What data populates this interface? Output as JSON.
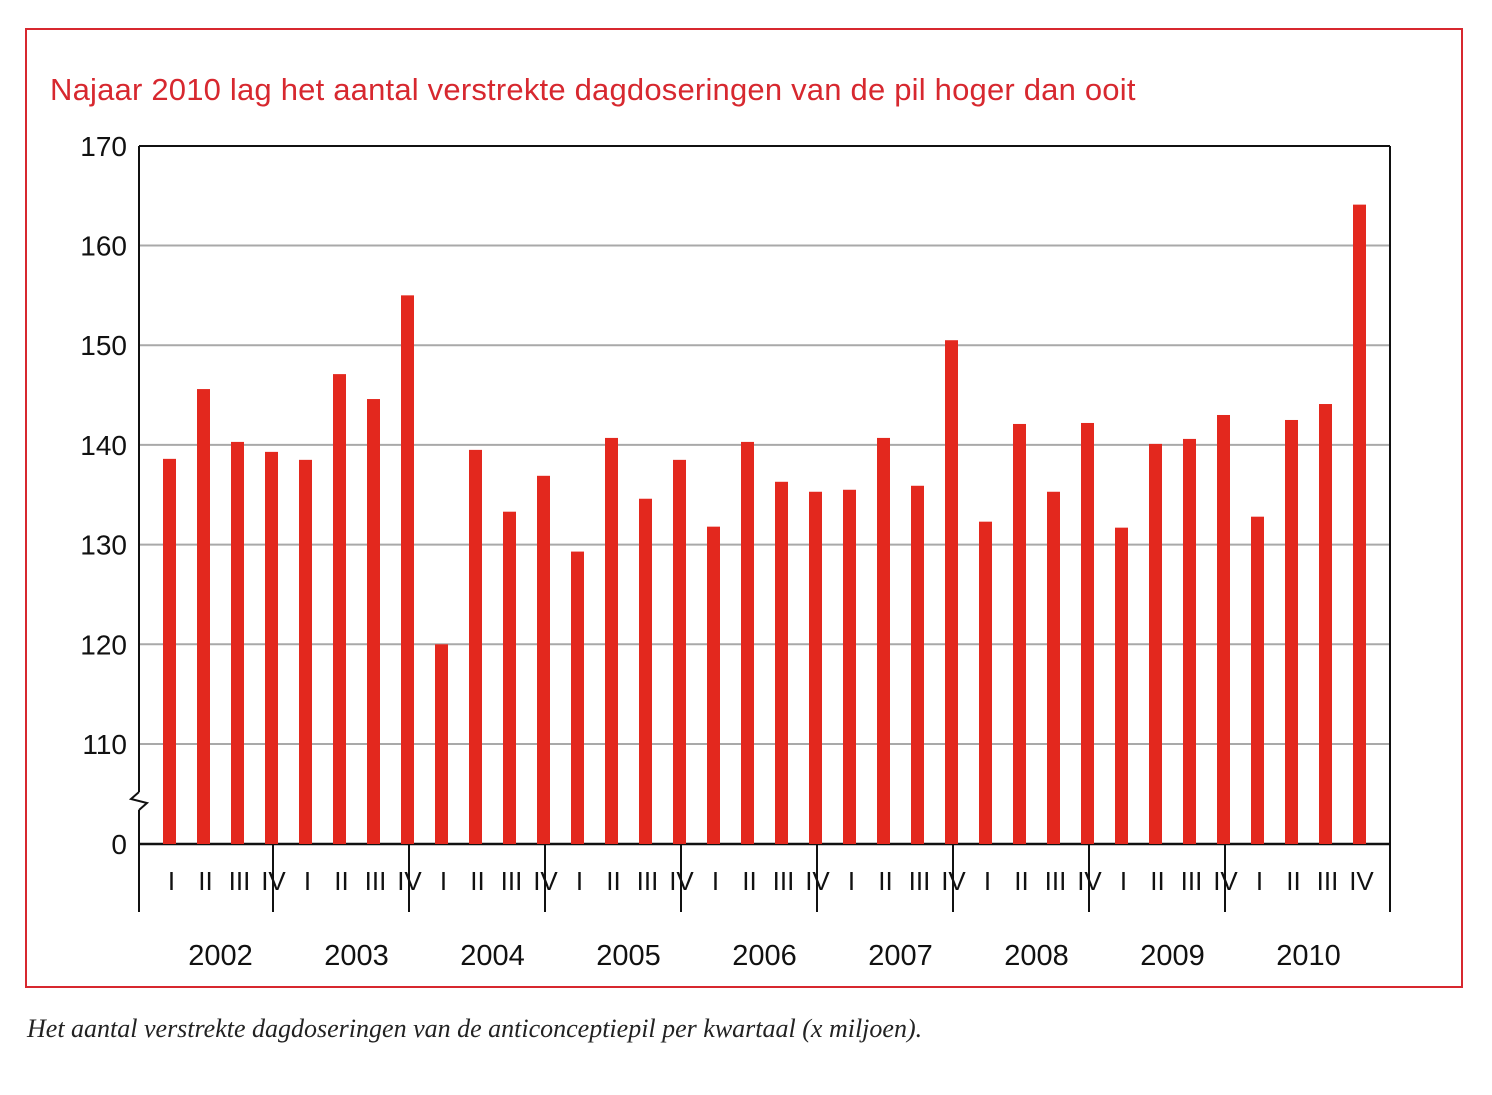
{
  "title": "Najaar 2010 lag het aantal verstrekte dagdoseringen van de pil hoger dan ooit",
  "caption": "Het aantal verstrekte dagdoseringen van de anticonceptiepil per kwartaal (x miljoen).",
  "colors": {
    "bar": "#e3281e",
    "frame": "#d7282f",
    "grid": "#a9a9a9",
    "axis": "#111111"
  },
  "chart_data": {
    "type": "bar",
    "title": "Najaar 2010 lag het aantal verstrekte dagdoseringen van de pil hoger dan ooit",
    "xlabel": "",
    "ylabel": "",
    "ylim": [
      0,
      170
    ],
    "axis_break": "between 0 and 110",
    "y_ticks": [
      "0",
      "110",
      "120",
      "130",
      "140",
      "150",
      "160",
      "170"
    ],
    "years": [
      "2002",
      "2003",
      "2004",
      "2005",
      "2006",
      "2007",
      "2008",
      "2009",
      "2010"
    ],
    "quarters": [
      "I",
      "II",
      "III",
      "IV"
    ],
    "grid": true,
    "values": [
      138.6,
      145.6,
      140.3,
      139.3,
      138.5,
      147.1,
      144.6,
      155.0,
      120.0,
      139.5,
      133.3,
      136.9,
      129.3,
      140.7,
      134.6,
      138.5,
      131.8,
      140.3,
      136.3,
      135.3,
      135.5,
      140.7,
      135.9,
      150.5,
      132.3,
      142.1,
      135.3,
      142.2,
      131.7,
      140.1,
      140.6,
      143.0,
      132.8,
      142.5,
      144.1,
      164.1
    ]
  }
}
